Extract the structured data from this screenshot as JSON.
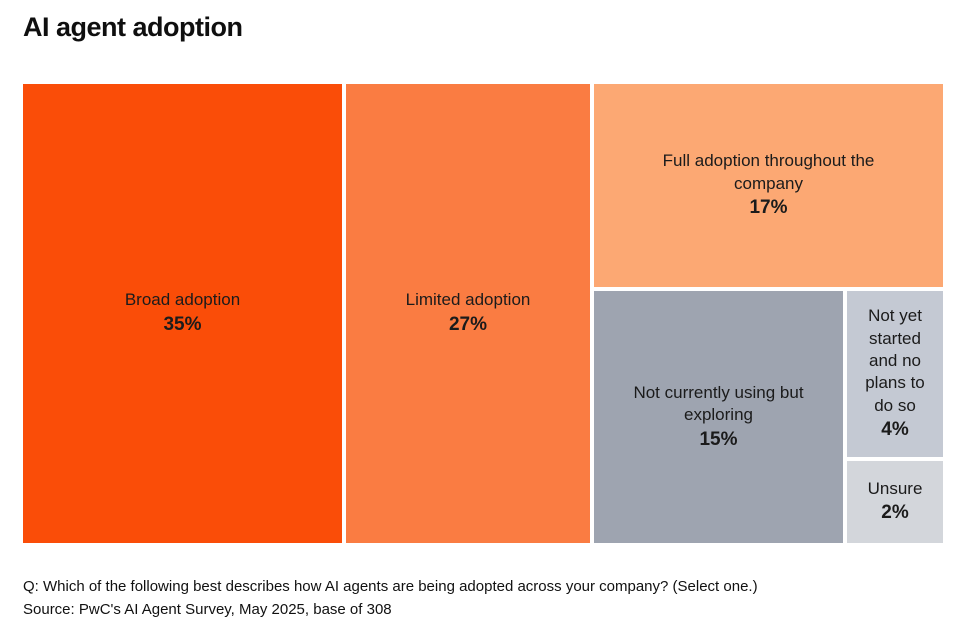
{
  "chart_data": {
    "type": "treemap",
    "title": "AI agent adoption",
    "unit": "%",
    "legend": "none",
    "segments": [
      {
        "label": "Broad adoption",
        "display_label": "Broad adoption",
        "value": 35,
        "value_label": "35%",
        "color": "#FA4D08"
      },
      {
        "label": "Limited adoption",
        "display_label": "Limited adoption",
        "value": 27,
        "value_label": "27%",
        "color": "#FA7C42"
      },
      {
        "label": "Full adoption throughout the company",
        "display_label": "Full adoption throughout the\ncompany",
        "value": 17,
        "value_label": "17%",
        "color": "#FCA873"
      },
      {
        "label": "Not currently using but exploring",
        "display_label": "Not currently using but\nexploring",
        "value": 15,
        "value_label": "15%",
        "color": "#9EA4B0"
      },
      {
        "label": "Not yet started and no plans to do so",
        "display_label": "Not yet\nstarted\nand no\nplans to\ndo so",
        "value": 4,
        "value_label": "4%",
        "color": "#C4C9D3"
      },
      {
        "label": "Unsure",
        "display_label": "Unsure",
        "value": 2,
        "value_label": "2%",
        "color": "#D3D6DB"
      }
    ],
    "question": "Q: Which of the following best describes how AI agents are being adopted across your company? (Select one.)",
    "source": "Source: PwC's AI Agent Survey, May 2025, base of 308"
  }
}
